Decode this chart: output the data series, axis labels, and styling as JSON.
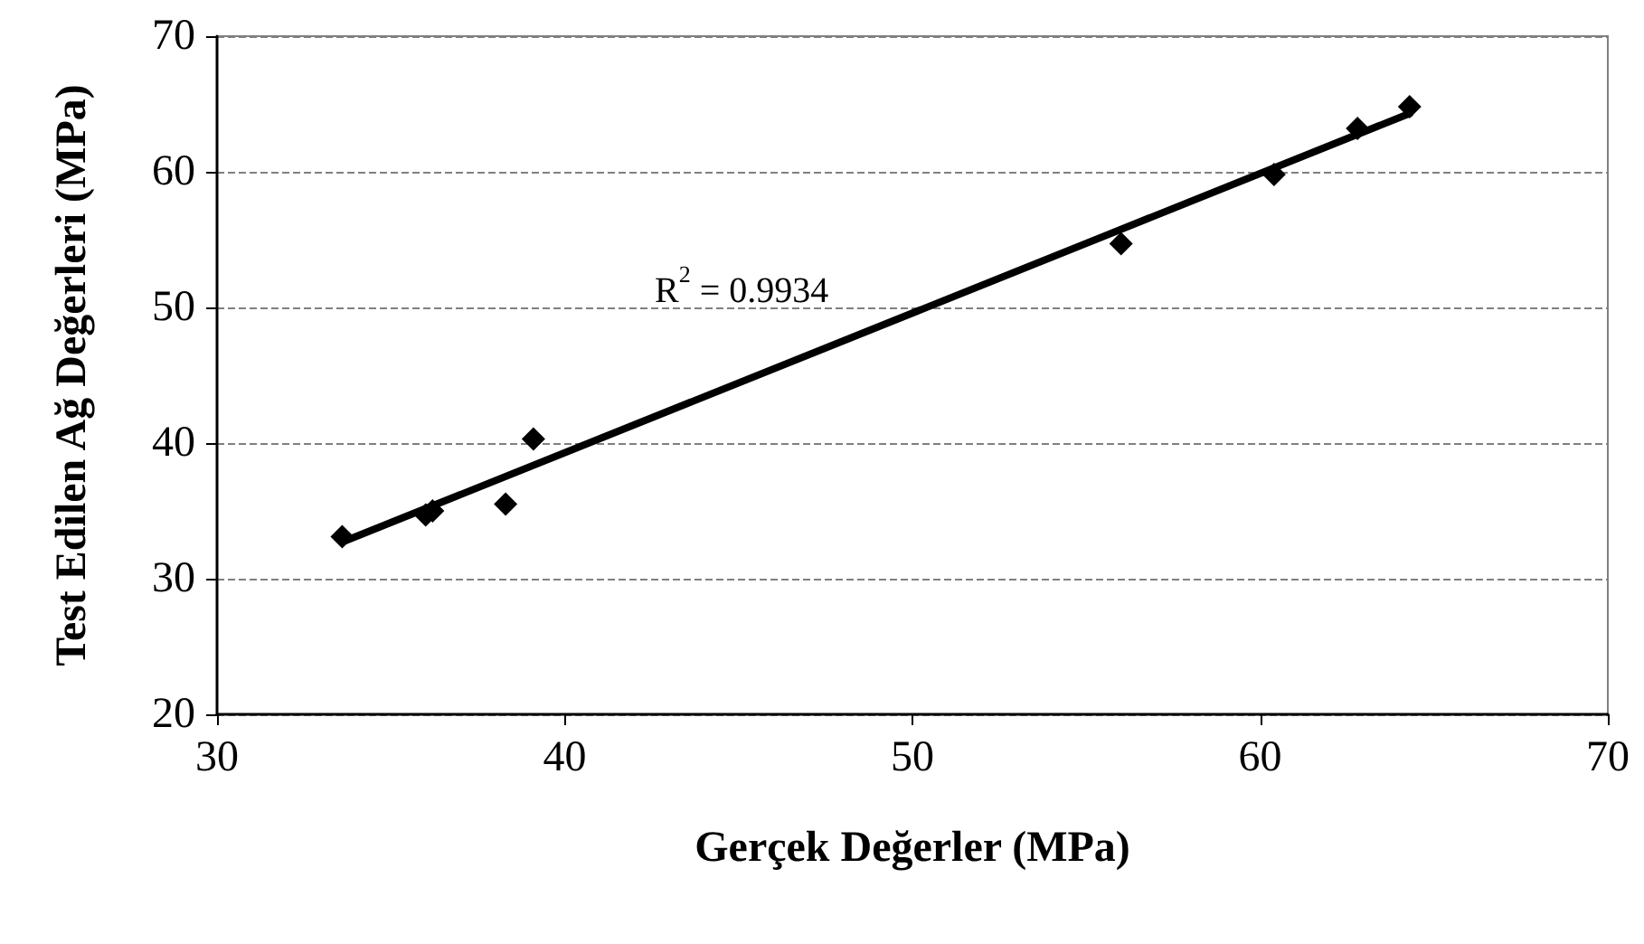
{
  "chart_data": {
    "type": "scatter",
    "xlabel": "Gerçek Değerler (MPa)",
    "ylabel": "Test Edilen Ağ Değerleri (MPa)",
    "xlim": [
      30,
      70
    ],
    "xticks": [
      30,
      40,
      50,
      60,
      70
    ],
    "ylim": [
      20,
      70
    ],
    "yticks": [
      20,
      30,
      40,
      50,
      60,
      70
    ],
    "grid": "y",
    "marker": "diamond",
    "annotations": [
      "R$^{2}$ = 0.9934"
    ],
    "series": [
      {
        "color": "#000000",
        "x": [
          33.6,
          36.0,
          36.2,
          38.3,
          39.1,
          56.0,
          60.4,
          62.8,
          64.3
        ],
        "values": [
          33.1,
          34.7,
          35.0,
          35.5,
          40.3,
          54.7,
          59.8,
          63.2,
          64.8
        ]
      },
      {
        "type": "line",
        "color": "#000000",
        "marker": "none",
        "x": [
          33.6,
          64.3
        ],
        "values": [
          32.7,
          64.3
        ]
      }
    ]
  }
}
